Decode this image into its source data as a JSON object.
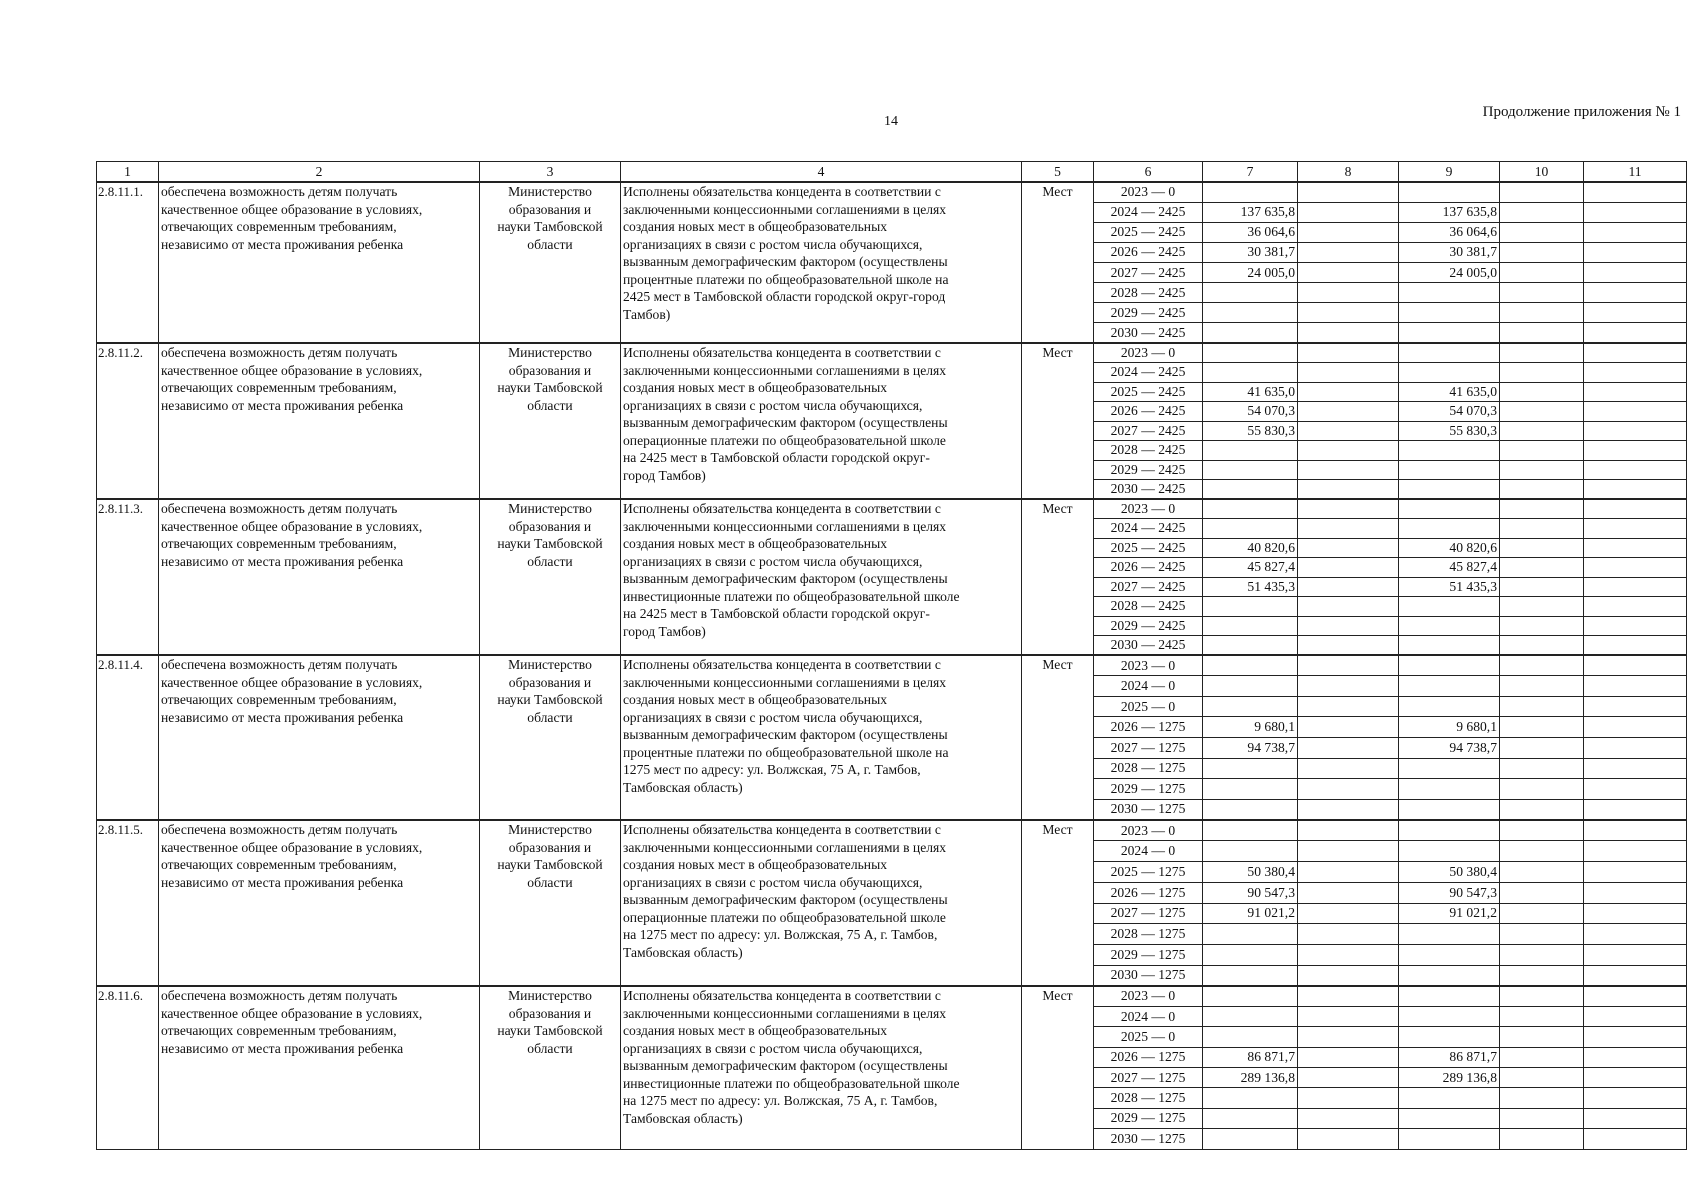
{
  "page": {
    "number": "14",
    "header_right": "Продолжение приложения № 1"
  },
  "table": {
    "columns": [
      "1",
      "2",
      "3",
      "4",
      "5",
      "6",
      "7",
      "8",
      "9",
      "10",
      "11"
    ],
    "blocks": [
      {
        "id": "2.8.11.1.",
        "result": "обеспечена возможность детям получать\nкачественное общее образование в условиях,\nотвечающих современным требованиям,\nнезависимо от места проживания ребенка",
        "responsible": "Министерство\nобразования и\nнауки Тамбовской\nобласти",
        "description": "Исполнены обязательства концедента в соответствии с\nзаключенными концессионными соглашениями в целях\nсоздания новых мест в общеобразовательных\nорганизациях в связи с ростом числа обучающихся,\nвызванным демографическим фактором (осуществлены\nпроцентные платежи по общеобразовательной школе на\n2425 мест в Тамбовской области городской округ-город\nТамбов)",
        "unit": "Мест",
        "rows": [
          [
            "2023 — 0",
            "",
            "",
            "",
            "",
            ""
          ],
          [
            "2024 — 2425",
            "137 635,8",
            "",
            "137 635,8",
            "",
            ""
          ],
          [
            "2025 — 2425",
            "36 064,6",
            "",
            "36 064,6",
            "",
            ""
          ],
          [
            "2026 — 2425",
            "30 381,7",
            "",
            "30 381,7",
            "",
            ""
          ],
          [
            "2027 — 2425",
            "24 005,0",
            "",
            "24 005,0",
            "",
            ""
          ],
          [
            "2028 — 2425",
            "",
            "",
            "",
            "",
            ""
          ],
          [
            "2029 — 2425",
            "",
            "",
            "",
            "",
            ""
          ],
          [
            "2030 — 2425",
            "",
            "",
            "",
            "",
            ""
          ]
        ]
      },
      {
        "id": "2.8.11.2.",
        "result": "обеспечена возможность детям получать\nкачественное общее образование в условиях,\nотвечающих современным требованиям,\nнезависимо от места проживания ребенка",
        "responsible": "Министерство\nобразования и\nнауки Тамбовской\nобласти",
        "description": "Исполнены обязательства концедента в соответствии с\nзаключенными концессионными соглашениями в целях\nсоздания новых мест в общеобразовательных\nорганизациях в связи с ростом числа обучающихся,\nвызванным демографическим фактором (осуществлены\nоперационные платежи по общеобразовательной школе\nна 2425 мест в Тамбовской области городской округ-\nгород Тамбов)",
        "unit": "Мест",
        "rows": [
          [
            "2023 — 0",
            "",
            "",
            "",
            "",
            ""
          ],
          [
            "2024 — 2425",
            "",
            "",
            "",
            "",
            ""
          ],
          [
            "2025 — 2425",
            "41 635,0",
            "",
            "41 635,0",
            "",
            ""
          ],
          [
            "2026 — 2425",
            "54 070,3",
            "",
            "54 070,3",
            "",
            ""
          ],
          [
            "2027 — 2425",
            "55 830,3",
            "",
            "55 830,3",
            "",
            ""
          ],
          [
            "2028 — 2425",
            "",
            "",
            "",
            "",
            ""
          ],
          [
            "2029 — 2425",
            "",
            "",
            "",
            "",
            ""
          ],
          [
            "2030 — 2425",
            "",
            "",
            "",
            "",
            ""
          ]
        ]
      },
      {
        "id": "2.8.11.3.",
        "result": "обеспечена возможность детям получать\nкачественное общее образование в условиях,\nотвечающих современным требованиям,\nнезависимо от места проживания ребенка",
        "responsible": "Министерство\nобразования и\nнауки Тамбовской\nобласти",
        "description": "Исполнены обязательства концедента в соответствии с\nзаключенными концессионными соглашениями в целях\nсоздания новых мест в общеобразовательных\nорганизациях в связи с ростом числа обучающихся,\nвызванным демографическим фактором (осуществлены\nинвестиционные платежи по общеобразовательной школе\nна 2425 мест в Тамбовской области городской округ-\nгород Тамбов)",
        "unit": "Мест",
        "rows": [
          [
            "2023 — 0",
            "",
            "",
            "",
            "",
            ""
          ],
          [
            "2024 — 2425",
            "",
            "",
            "",
            "",
            ""
          ],
          [
            "2025 — 2425",
            "40 820,6",
            "",
            "40 820,6",
            "",
            ""
          ],
          [
            "2026 — 2425",
            "45 827,4",
            "",
            "45 827,4",
            "",
            ""
          ],
          [
            "2027 — 2425",
            "51 435,3",
            "",
            "51 435,3",
            "",
            ""
          ],
          [
            "2028 — 2425",
            "",
            "",
            "",
            "",
            ""
          ],
          [
            "2029 — 2425",
            "",
            "",
            "",
            "",
            ""
          ],
          [
            "2030 — 2425",
            "",
            "",
            "",
            "",
            ""
          ]
        ]
      },
      {
        "id": "2.8.11.4.",
        "result": "обеспечена возможность детям получать\nкачественное общее образование в условиях,\nотвечающих современным требованиям,\nнезависимо от места проживания ребенка",
        "responsible": "Министерство\nобразования и\nнауки Тамбовской\nобласти",
        "description": "Исполнены обязательства концедента в соответствии с\nзаключенными концессионными соглашениями в целях\nсоздания новых мест в общеобразовательных\nорганизациях в связи с ростом числа обучающихся,\nвызванным демографическим фактором (осуществлены\nпроцентные платежи по общеобразовательной школе на\n1275 мест по адресу: ул. Волжская, 75 А, г. Тамбов,\nТамбовская область)",
        "unit": "Мест",
        "rows": [
          [
            "2023 — 0",
            "",
            "",
            "",
            "",
            ""
          ],
          [
            "2024 — 0",
            "",
            "",
            "",
            "",
            ""
          ],
          [
            "2025 — 0",
            "",
            "",
            "",
            "",
            ""
          ],
          [
            "2026 — 1275",
            "9 680,1",
            "",
            "9 680,1",
            "",
            ""
          ],
          [
            "2027 — 1275",
            "94 738,7",
            "",
            "94 738,7",
            "",
            ""
          ],
          [
            "2028 — 1275",
            "",
            "",
            "",
            "",
            ""
          ],
          [
            "2029 — 1275",
            "",
            "",
            "",
            "",
            ""
          ],
          [
            "2030 — 1275",
            "",
            "",
            "",
            "",
            ""
          ]
        ]
      },
      {
        "id": "2.8.11.5.",
        "result": "обеспечена возможность детям получать\nкачественное общее образование в условиях,\nотвечающих современным требованиям,\nнезависимо от места проживания ребенка",
        "responsible": "Министерство\nобразования и\nнауки Тамбовской\nобласти",
        "description": "Исполнены обязательства концедента в соответствии с\nзаключенными концессионными соглашениями в целях\nсоздания новых мест в общеобразовательных\nорганизациях в связи с ростом числа обучающихся,\nвызванным демографическим фактором  (осуществлены\nоперационные платежи по общеобразовательной школе\nна 1275 мест по адресу: ул. Волжская, 75 А, г. Тамбов,\nТамбовская область)",
        "unit": "Мест",
        "rows": [
          [
            "2023 — 0",
            "",
            "",
            "",
            "",
            ""
          ],
          [
            "2024 — 0",
            "",
            "",
            "",
            "",
            ""
          ],
          [
            "2025 — 1275",
            "50 380,4",
            "",
            "50 380,4",
            "",
            ""
          ],
          [
            "2026 — 1275",
            "90 547,3",
            "",
            "90 547,3",
            "",
            ""
          ],
          [
            "2027 — 1275",
            "91 021,2",
            "",
            "91 021,2",
            "",
            ""
          ],
          [
            "2028 — 1275",
            "",
            "",
            "",
            "",
            ""
          ],
          [
            "2029 — 1275",
            "",
            "",
            "",
            "",
            ""
          ],
          [
            "2030 — 1275",
            "",
            "",
            "",
            "",
            ""
          ]
        ]
      },
      {
        "id": "2.8.11.6.",
        "result": "обеспечена возможность детям получать\nкачественное общее образование в условиях,\nотвечающих современным требованиям,\nнезависимо от места проживания ребенка",
        "responsible": "Министерство\nобразования и\nнауки Тамбовской\nобласти",
        "description": "Исполнены обязательства концедента в соответствии с\nзаключенными концессионными соглашениями в целях\nсоздания новых мест в общеобразовательных\nорганизациях в связи с ростом числа обучающихся,\nвызванным демографическим фактором  (осуществлены\nинвестиционные платежи по общеобразовательной школе\nна 1275 мест по адресу: ул. Волжская, 75 А, г. Тамбов,\nТамбовская область)",
        "unit": "Мест",
        "rows": [
          [
            "2023 — 0",
            "",
            "",
            "",
            "",
            ""
          ],
          [
            "2024 — 0",
            "",
            "",
            "",
            "",
            ""
          ],
          [
            "2025 — 0",
            "",
            "",
            "",
            "",
            ""
          ],
          [
            "2026 — 1275",
            "86 871,7",
            "",
            "86 871,7",
            "",
            ""
          ],
          [
            "2027 — 1275",
            "289 136,8",
            "",
            "289 136,8",
            "",
            ""
          ],
          [
            "2028 — 1275",
            "",
            "",
            "",
            "",
            ""
          ],
          [
            "2029 — 1275",
            "",
            "",
            "",
            "",
            ""
          ],
          [
            "2030 — 1275",
            "",
            "",
            "",
            "",
            ""
          ]
        ]
      }
    ]
  }
}
